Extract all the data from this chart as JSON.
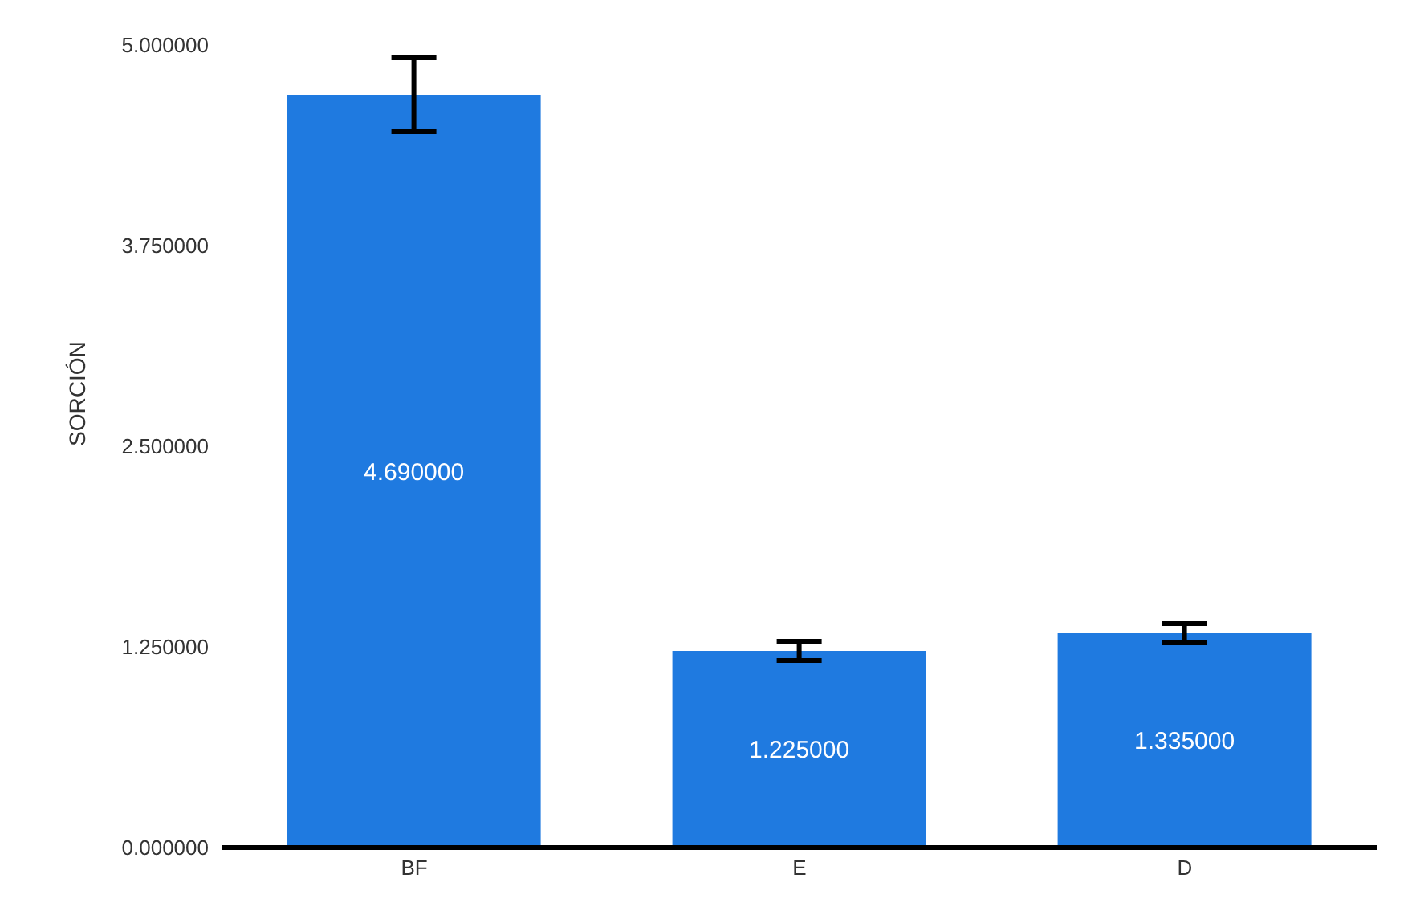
{
  "chart_data": {
    "type": "bar",
    "ylabel": "SORCIÓN",
    "categories": [
      "BF",
      "E",
      "D"
    ],
    "values": [
      4.69,
      1.225,
      1.335
    ],
    "value_labels": [
      "4.690000",
      "1.225000",
      "1.335000"
    ],
    "errors": [
      0.23,
      0.06,
      0.06
    ],
    "color": "#1f7ae0",
    "ylim": [
      0,
      5
    ],
    "yticks": [
      {
        "value": 0,
        "label": "0.000000"
      },
      {
        "value": 1.25,
        "label": "1.250000"
      },
      {
        "value": 2.5,
        "label": "2.500000"
      },
      {
        "value": 3.75,
        "label": "3.750000"
      },
      {
        "value": 5,
        "label": "5.000000"
      }
    ],
    "grid": false,
    "legend": false
  }
}
